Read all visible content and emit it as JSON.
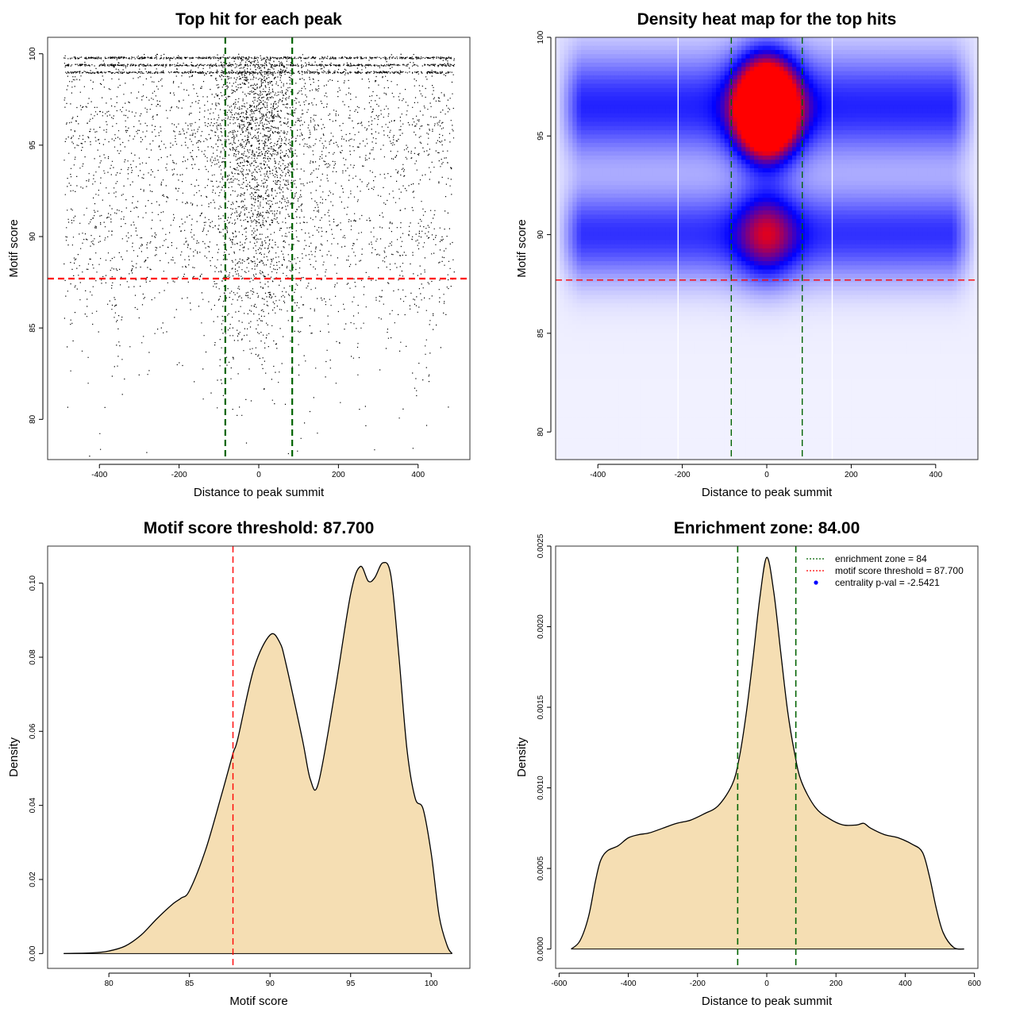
{
  "chart_data": [
    {
      "type": "scatter",
      "title": "Top hit for each peak",
      "xlabel": "Distance to peak summit",
      "ylabel": "Motif score",
      "xlim": [
        -530,
        530
      ],
      "ylim": [
        77.8,
        100.9
      ],
      "xticks": [
        -400,
        -200,
        0,
        200,
        400
      ],
      "yticks": [
        80,
        85,
        90,
        95,
        100
      ],
      "x_range_of_points": [
        -490,
        490
      ],
      "points_note_density": [
        {
          "y": 98.5,
          "weight": 1.0
        },
        {
          "y": 96.5,
          "weight": 2.2
        },
        {
          "y": 95,
          "weight": 2.0
        },
        {
          "y": 92,
          "weight": 1.1
        },
        {
          "y": 90,
          "weight": 1.8
        },
        {
          "y": 87.5,
          "weight": 0.9
        },
        {
          "y": 85,
          "weight": 0.35
        },
        {
          "y": 82,
          "weight": 0.12
        }
      ],
      "vlines": [
        {
          "x": -84,
          "color": "#006400"
        },
        {
          "x": 84,
          "color": "#006400"
        }
      ],
      "hlines": [
        {
          "y": 87.7,
          "color": "#ff0000"
        }
      ]
    },
    {
      "type": "heatmap",
      "title": "Density heat map for the top hits",
      "xlabel": "Distance to peak summit",
      "ylabel": "Motif score",
      "xlim": [
        -500,
        500
      ],
      "ylim": [
        78.6,
        100
      ],
      "xticks": [
        -400,
        -200,
        0,
        200,
        400
      ],
      "yticks": [
        80,
        85,
        90,
        95,
        100
      ],
      "color_scale": [
        "#ffffff",
        "#0000ff",
        "#ff0000"
      ],
      "hotspots": [
        {
          "x": 0,
          "y": 97.2,
          "intensity": 1.0,
          "sx": 50,
          "sy": 1.5
        },
        {
          "x": 0,
          "y": 95.5,
          "intensity": 0.95,
          "sx": 50,
          "sy": 1.4
        },
        {
          "x": 0,
          "y": 90,
          "intensity": 0.5,
          "sx": 50,
          "sy": 1.6
        }
      ],
      "bands": [
        {
          "y": 96.5,
          "intensity": 0.42,
          "sy": 1.8
        },
        {
          "y": 90,
          "intensity": 0.4,
          "sy": 1.6
        }
      ],
      "vlines": [
        {
          "x": -84,
          "color": "#006400"
        },
        {
          "x": 84,
          "color": "#006400"
        },
        {
          "x": -210,
          "color": "#ffffff"
        },
        {
          "x": 155,
          "color": "#ffffff"
        }
      ],
      "hlines": [
        {
          "y": 87.7,
          "color": "#ff0000"
        }
      ]
    },
    {
      "type": "area",
      "title": "Motif score threshold: 87.700",
      "xlabel": "Motif score",
      "ylabel": "Density",
      "xlim": [
        76.2,
        102.4
      ],
      "ylim": [
        -0.004,
        0.11
      ],
      "xticks": [
        80,
        85,
        90,
        95,
        100
      ],
      "yticks": [
        0.0,
        0.02,
        0.04,
        0.06,
        0.08,
        0.1
      ],
      "ytick_labels": [
        "0.00",
        "0.02",
        "0.04",
        "0.06",
        "0.08",
        "0.10"
      ],
      "fill": "#f5deb3",
      "x": [
        77.2,
        79,
        80,
        81,
        82,
        83,
        84,
        84.5,
        85,
        86,
        87,
        87.7,
        88,
        89,
        90,
        90.6,
        91,
        92,
        92.5,
        93,
        94,
        95,
        95.6,
        96.1,
        96.5,
        97,
        97.5,
        98,
        98.5,
        99,
        99.5,
        100,
        100.5,
        101,
        101.3
      ],
      "y": [
        0,
        0.0002,
        0.0007,
        0.002,
        0.005,
        0.0095,
        0.0135,
        0.015,
        0.017,
        0.028,
        0.043,
        0.054,
        0.058,
        0.077,
        0.086,
        0.084,
        0.078,
        0.058,
        0.047,
        0.046,
        0.07,
        0.097,
        0.1045,
        0.1005,
        0.1015,
        0.1055,
        0.102,
        0.08,
        0.055,
        0.042,
        0.039,
        0.027,
        0.01,
        0.002,
        0
      ],
      "vlines": [
        {
          "x": 87.7,
          "color": "#ff0000"
        }
      ]
    },
    {
      "type": "area",
      "title": "Enrichment zone: 84.00",
      "xlabel": "Distance to peak summit",
      "ylabel": "Density",
      "xlim": [
        -610,
        610
      ],
      "ylim": [
        -0.00012,
        0.0025
      ],
      "xticks": [
        -600,
        -400,
        -200,
        0,
        200,
        400,
        600
      ],
      "yticks": [
        0,
        0.0005,
        0.001,
        0.0015,
        0.002,
        0.0025
      ],
      "ytick_labels": [
        "0.0000",
        "0.0005",
        "0.0010",
        "0.0015",
        "0.0020",
        "0.0025"
      ],
      "fill": "#f5deb3",
      "x": [
        -565,
        -540,
        -515,
        -495,
        -480,
        -460,
        -430,
        -400,
        -370,
        -340,
        -300,
        -260,
        -220,
        -180,
        -140,
        -100,
        -80,
        -60,
        -40,
        -20,
        0,
        20,
        40,
        60,
        80,
        100,
        140,
        180,
        220,
        260,
        280,
        300,
        340,
        380,
        420,
        450,
        470,
        490,
        510,
        540,
        570
      ],
      "y": [
        0,
        5e-05,
        0.0002,
        0.00042,
        0.00055,
        0.00061,
        0.00064,
        0.00069,
        0.00071,
        0.00072,
        0.00075,
        0.00078,
        0.0008,
        0.00084,
        0.00089,
        0.00102,
        0.00118,
        0.00145,
        0.0018,
        0.00218,
        0.00243,
        0.00222,
        0.00185,
        0.00148,
        0.00122,
        0.00104,
        0.00088,
        0.00081,
        0.00077,
        0.00077,
        0.00078,
        0.00075,
        0.00071,
        0.00069,
        0.00065,
        0.0006,
        0.00045,
        0.00025,
        0.0001,
        1e-05,
        0
      ],
      "vlines": [
        {
          "x": -84,
          "color": "#006400"
        },
        {
          "x": 84,
          "color": "#006400"
        }
      ],
      "legend": {
        "position": "top-right",
        "entries": [
          {
            "label": "enrichment zone = 84",
            "color": "#006400",
            "kind": "dotted-line"
          },
          {
            "label": "motif score threshold = 87.700",
            "color": "#ff0000",
            "kind": "dotted-line"
          },
          {
            "label": "centrality p-val = -2.5421",
            "color": "#0000ff",
            "kind": "point"
          }
        ]
      }
    }
  ]
}
